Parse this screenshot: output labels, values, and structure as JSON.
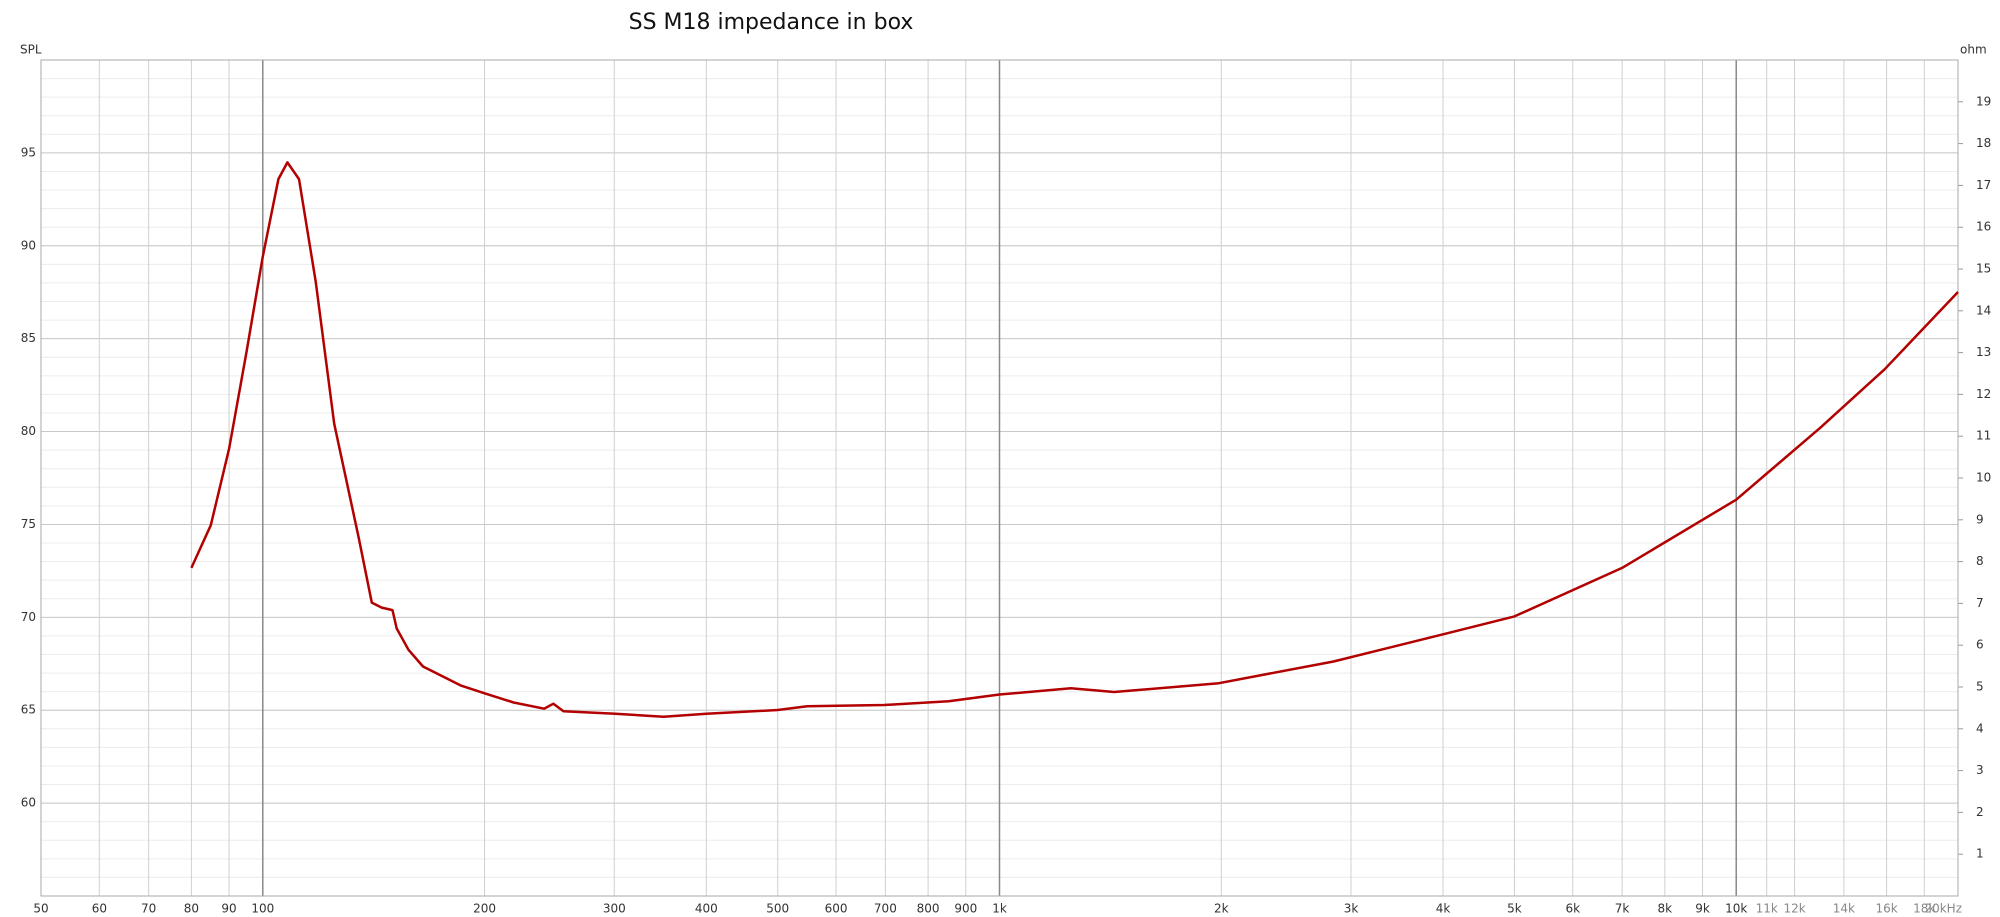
{
  "chart_data": {
    "type": "line",
    "title": "SS M18 impedance in box",
    "y_label": "SPL",
    "y2_label": "ohm",
    "x_scale": "log",
    "grid": true,
    "xlim": [
      50,
      20000
    ],
    "xticks": [
      50,
      60,
      70,
      80,
      90,
      100,
      200,
      300,
      400,
      500,
      600,
      700,
      800,
      900,
      {
        "value": 1000,
        "label": "1k"
      },
      {
        "value": 2000,
        "label": "2k"
      },
      {
        "value": 3000,
        "label": "3k"
      },
      {
        "value": 4000,
        "label": "4k"
      },
      {
        "value": 5000,
        "label": "5k"
      },
      {
        "value": 6000,
        "label": "6k"
      },
      {
        "value": 7000,
        "label": "7k"
      },
      {
        "value": 8000,
        "label": "8k"
      },
      {
        "value": 9000,
        "label": "9k"
      },
      {
        "value": 10000,
        "label": "10k"
      },
      {
        "value": 11000,
        "label": "11k"
      },
      {
        "value": 12000,
        "label": "12k"
      },
      {
        "value": 14000,
        "label": "14k"
      },
      {
        "value": 16000,
        "label": "16k"
      },
      {
        "value": 18000,
        "label": "18k"
      },
      {
        "value": 20000,
        "label": "20kHz"
      }
    ],
    "ylim": [
      55,
      100
    ],
    "yticks": [
      60,
      65,
      70,
      75,
      80,
      85,
      90,
      95
    ],
    "y2lim": [
      0,
      20
    ],
    "y2ticks": [
      1,
      2,
      3,
      4,
      5,
      6,
      7,
      8,
      9,
      10,
      11,
      12,
      13,
      14,
      15,
      16,
      17,
      18,
      19
    ],
    "x": [
      80,
      85,
      90,
      95,
      100,
      105,
      108,
      112,
      118,
      125,
      135,
      140.6,
      145,
      150,
      152,
      157.7,
      165,
      186,
      200,
      219,
      241,
      248,
      256,
      301,
      350,
      400,
      500,
      548,
      697,
      853,
      1000,
      1250,
      1431,
      1985,
      2840,
      4000,
      5000,
      7000,
      10000,
      13000,
      15900,
      20000
    ],
    "series": [
      {
        "color": "#b30000",
        "axis": "y2",
        "values": [
          7.85,
          8.87,
          10.7,
          13.0,
          15.3,
          17.15,
          17.55,
          17.15,
          14.7,
          11.3,
          8.56,
          7.02,
          6.9,
          6.84,
          6.4,
          5.89,
          5.49,
          5.03,
          4.85,
          4.63,
          4.48,
          4.6,
          4.42,
          4.36,
          4.29,
          4.36,
          4.45,
          4.54,
          4.57,
          4.66,
          4.82,
          4.97,
          4.88,
          5.09,
          5.61,
          6.26,
          6.69,
          7.85,
          9.48,
          11.2,
          12.6,
          14.45
        ]
      }
    ]
  }
}
